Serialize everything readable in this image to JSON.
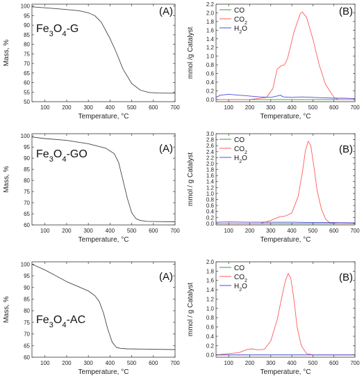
{
  "chart_data": [
    {
      "type": "line",
      "row": 0,
      "col": 0,
      "panel_label": "(A)",
      "material_label": [
        "Fe",
        "3",
        "O",
        "4",
        "-G"
      ],
      "xlabel": "Temperature, °C",
      "ylabel": "Mass, %",
      "xlim": [
        40,
        700
      ],
      "ylim": [
        50,
        101
      ],
      "xticks": [
        100,
        200,
        300,
        400,
        500,
        600,
        700
      ],
      "yticks": [
        50,
        55,
        60,
        65,
        70,
        75,
        80,
        85,
        90,
        95,
        100
      ],
      "series": [
        {
          "color": "#444444",
          "x": [
            40,
            100,
            200,
            260,
            300,
            330,
            360,
            400,
            430,
            460,
            500,
            540,
            580,
            620,
            700
          ],
          "y": [
            99.6,
            99.1,
            98.2,
            97.5,
            96.5,
            95.0,
            91.5,
            83.0,
            75.5,
            67.0,
            59.5,
            56.0,
            54.8,
            54.5,
            54.4
          ]
        }
      ]
    },
    {
      "type": "line",
      "row": 0,
      "col": 1,
      "panel_label": "(B)",
      "xlabel": "Temperature, °C",
      "ylabel": "mmol /g Catalyst",
      "xlim": [
        40,
        700
      ],
      "ylim": [
        -0.05,
        2.2
      ],
      "xticks": [
        100,
        200,
        300,
        400,
        500,
        600,
        700
      ],
      "yticks": [
        0.0,
        0.2,
        0.4,
        0.6,
        0.8,
        1.0,
        1.2,
        1.4,
        1.6,
        1.8,
        2.0,
        2.2
      ],
      "legend": {
        "placement": "top-left",
        "entries": [
          {
            "parts": [
              "CO"
            ],
            "color": "#2ca02c"
          },
          {
            "parts": [
              "CO",
              "2"
            ],
            "color": "#ff5a5a"
          },
          {
            "parts": [
              "H",
              "2",
              "O"
            ],
            "color": "#4b4bdb"
          }
        ]
      },
      "series": [
        {
          "color": "#2ca02c",
          "x": [
            40,
            700
          ],
          "y": [
            0.0,
            0.0
          ]
        },
        {
          "color": "#ff5a5a",
          "x": [
            40,
            200,
            280,
            310,
            330,
            350,
            365,
            380,
            410,
            440,
            450,
            470,
            500,
            530,
            560,
            600,
            620,
            650,
            700
          ],
          "y": [
            0.0,
            0.0,
            0.05,
            0.25,
            0.7,
            0.78,
            0.8,
            0.95,
            1.55,
            1.98,
            2.02,
            1.9,
            1.4,
            0.8,
            0.35,
            0.05,
            0.0,
            0.0,
            0.0
          ]
        },
        {
          "color": "#4b4bdb",
          "x": [
            40,
            60,
            100,
            150,
            200,
            250,
            300,
            330,
            345,
            360,
            400,
            450,
            500,
            550,
            600,
            650,
            700
          ],
          "y": [
            0.05,
            0.1,
            0.12,
            0.1,
            0.08,
            0.06,
            0.05,
            0.08,
            0.1,
            0.06,
            0.05,
            0.06,
            0.05,
            0.04,
            0.03,
            0.03,
            0.02
          ]
        }
      ]
    },
    {
      "type": "line",
      "row": 1,
      "col": 0,
      "panel_label": "(A)",
      "material_label": [
        "Fe",
        "3",
        "O",
        "4",
        "-GO"
      ],
      "xlabel": "Temperature, °C",
      "ylabel": "Mass, %",
      "xlim": [
        40,
        700
      ],
      "ylim": [
        60,
        101
      ],
      "xticks": [
        100,
        200,
        300,
        400,
        500,
        600,
        700
      ],
      "yticks": [
        60,
        65,
        70,
        75,
        80,
        85,
        90,
        95,
        100
      ],
      "series": [
        {
          "color": "#444444",
          "x": [
            40,
            100,
            200,
            300,
            380,
            420,
            440,
            460,
            480,
            500,
            520,
            540,
            570,
            620,
            700
          ],
          "y": [
            99.5,
            98.8,
            98.0,
            96.5,
            94.5,
            92.0,
            88.0,
            80.0,
            72.0,
            65.5,
            62.8,
            62.0,
            61.6,
            61.5,
            61.4
          ]
        }
      ]
    },
    {
      "type": "line",
      "row": 1,
      "col": 1,
      "panel_label": "(B)",
      "xlabel": "Temperature, °C",
      "ylabel": "mmol / g Catalyst",
      "xlim": [
        40,
        700
      ],
      "ylim": [
        -0.05,
        3.0
      ],
      "xticks": [
        100,
        200,
        300,
        400,
        500,
        600,
        700
      ],
      "yticks": [
        0.0,
        0.2,
        0.4,
        0.6,
        0.8,
        1.0,
        1.2,
        1.4,
        1.6,
        1.8,
        2.0,
        2.2,
        2.4,
        2.6,
        2.8,
        3.0
      ],
      "legend": {
        "placement": "top-left",
        "entries": [
          {
            "parts": [
              "CO"
            ],
            "color": "#2ca02c"
          },
          {
            "parts": [
              "CO",
              "2"
            ],
            "color": "#ff5a5a"
          },
          {
            "parts": [
              "H",
              "2",
              "O"
            ],
            "color": "#4b4bdb"
          }
        ]
      },
      "series": [
        {
          "color": "#2ca02c",
          "x": [
            40,
            700
          ],
          "y": [
            0.0,
            0.0
          ]
        },
        {
          "color": "#ff5a5a",
          "x": [
            40,
            250,
            300,
            340,
            370,
            400,
            430,
            450,
            465,
            478,
            490,
            505,
            520,
            540,
            560,
            580,
            620,
            700
          ],
          "y": [
            0.0,
            0.0,
            0.1,
            0.22,
            0.25,
            0.35,
            0.9,
            1.7,
            2.45,
            2.75,
            2.6,
            1.9,
            1.1,
            0.5,
            0.15,
            0.02,
            0.0,
            0.0
          ]
        },
        {
          "color": "#4b4bdb",
          "x": [
            40,
            100,
            200,
            300,
            400,
            500,
            600,
            700
          ],
          "y": [
            0.04,
            0.05,
            0.04,
            0.04,
            0.04,
            0.03,
            0.03,
            0.02
          ]
        }
      ]
    },
    {
      "type": "line",
      "row": 2,
      "col": 0,
      "panel_label": "(A)",
      "material_label": [
        "Fe",
        "3",
        "O",
        "4",
        "-AC"
      ],
      "xlabel": "Temperature, °C",
      "ylabel": "Mass, %",
      "xlim": [
        40,
        700
      ],
      "ylim": [
        60,
        101
      ],
      "xticks": [
        100,
        200,
        300,
        400,
        500,
        600,
        700
      ],
      "yticks": [
        60,
        65,
        70,
        75,
        80,
        85,
        90,
        95,
        100
      ],
      "series": [
        {
          "color": "#444444",
          "x": [
            40,
            100,
            150,
            200,
            250,
            300,
            330,
            350,
            370,
            390,
            410,
            430,
            450,
            480,
            550,
            700
          ],
          "y": [
            100.0,
            97.5,
            95.0,
            92.5,
            90.5,
            88.5,
            86.5,
            84.0,
            79.0,
            72.0,
            66.5,
            64.2,
            63.8,
            63.6,
            63.5,
            63.3
          ]
        }
      ]
    },
    {
      "type": "line",
      "row": 2,
      "col": 1,
      "panel_label": "(B)",
      "xlabel": "Temperature, °C",
      "ylabel": "mmol / g Catalyst",
      "xlim": [
        40,
        700
      ],
      "ylim": [
        -0.05,
        2.0
      ],
      "xticks": [
        100,
        200,
        300,
        400,
        500,
        600,
        700
      ],
      "yticks": [
        0.0,
        0.2,
        0.4,
        0.6,
        0.8,
        1.0,
        1.2,
        1.4,
        1.6,
        1.8,
        2.0
      ],
      "legend": {
        "placement": "top-left",
        "entries": [
          {
            "parts": [
              "CO"
            ],
            "color": "#2ca02c"
          },
          {
            "parts": [
              "CO",
              "2"
            ],
            "color": "#ff5a5a"
          },
          {
            "parts": [
              "H",
              "2",
              "O"
            ],
            "color": "#4b4bdb"
          }
        ]
      },
      "series": [
        {
          "color": "#2ca02c",
          "x": [
            40,
            700
          ],
          "y": [
            0.0,
            0.0
          ]
        },
        {
          "color": "#ff5a5a",
          "x": [
            40,
            150,
            190,
            210,
            240,
            270,
            300,
            330,
            355,
            370,
            383,
            395,
            410,
            425,
            445,
            470,
            500,
            700
          ],
          "y": [
            0.0,
            0.05,
            0.12,
            0.13,
            0.11,
            0.12,
            0.3,
            0.75,
            1.3,
            1.6,
            1.75,
            1.65,
            1.2,
            0.6,
            0.2,
            0.03,
            0.0,
            0.0
          ]
        },
        {
          "color": "#4b4bdb",
          "x": [
            40,
            100,
            200,
            300,
            400,
            500,
            600,
            700
          ],
          "y": [
            0.0,
            0.0,
            0.0,
            0.0,
            0.0,
            0.0,
            0.0,
            0.0
          ]
        }
      ]
    }
  ]
}
